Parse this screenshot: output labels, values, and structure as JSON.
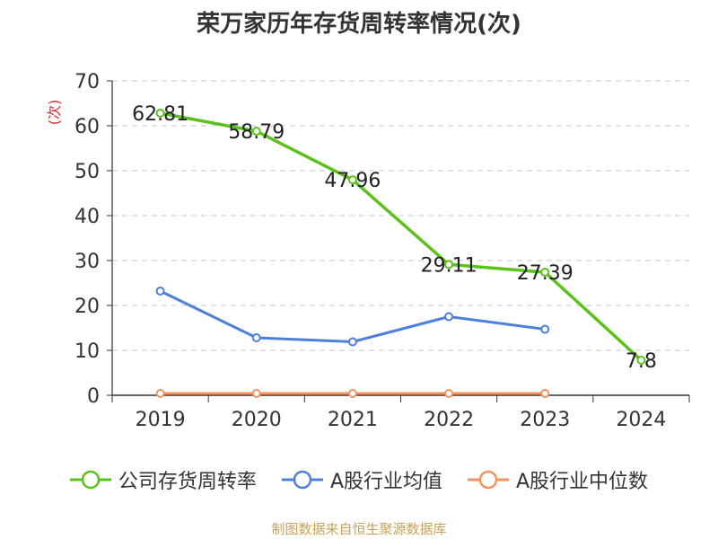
{
  "chart_data": {
    "type": "line",
    "title": "荣万家历年存货周转率情况(次)",
    "ylabel": "(次)",
    "xlabel": "",
    "categories": [
      "2019",
      "2020",
      "2021",
      "2022",
      "2023",
      "2024"
    ],
    "ylim": [
      0,
      70
    ],
    "yticks": [
      0,
      10,
      20,
      30,
      40,
      50,
      60,
      70
    ],
    "grid": true,
    "legend_position": "bottom",
    "series": [
      {
        "name": "公司存货周转率",
        "color": "#5ac21a",
        "values": [
          62.81,
          58.79,
          47.96,
          29.11,
          27.39,
          7.8
        ],
        "labels": [
          "62.81",
          "58.79",
          "47.96",
          "29.11",
          "27.39",
          "7.8"
        ]
      },
      {
        "name": "A股行业均值",
        "color": "#4f80d9",
        "values": [
          23.2,
          12.8,
          11.9,
          17.5,
          14.7,
          null
        ]
      },
      {
        "name": "A股行业中位数",
        "color": "#f2935f",
        "values": [
          0.4,
          0.4,
          0.4,
          0.4,
          0.4,
          null
        ]
      }
    ]
  },
  "source": "制图数据来自恒生聚源数据库"
}
